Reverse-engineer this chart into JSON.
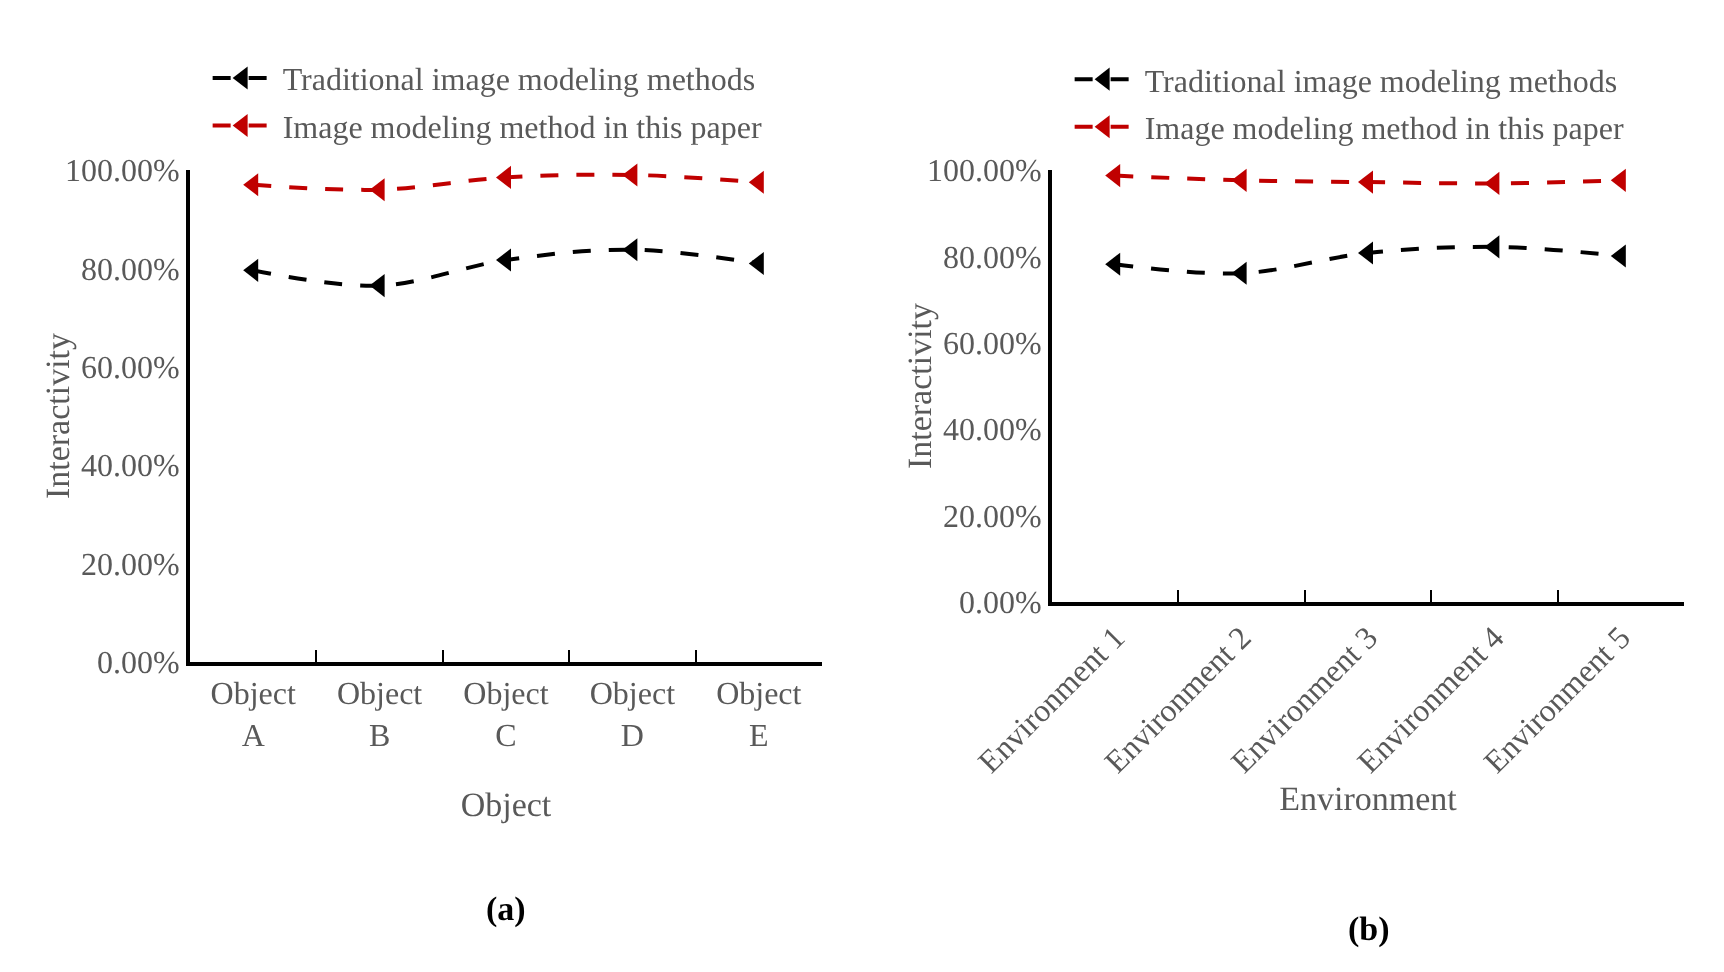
{
  "chart_data": [
    {
      "type": "line",
      "categories": [
        "Object A",
        "Object B",
        "Object C",
        "Object D",
        "Object E"
      ],
      "xlabel": "Object",
      "ylabel": "Interactivity",
      "ylim": [
        0,
        100
      ],
      "yticks": [
        {
          "value": 0,
          "label": "0.00%"
        },
        {
          "value": 20,
          "label": "20.00%"
        },
        {
          "value": 40,
          "label": "40.00%"
        },
        {
          "value": 60,
          "label": "60.00%"
        },
        {
          "value": 80,
          "label": "80.00%"
        },
        {
          "value": 100,
          "label": "100.00%"
        }
      ],
      "series": [
        {
          "name": "Traditional image modeling methods",
          "color": "#000000",
          "values": [
            79.6,
            76.5,
            81.7,
            83.8,
            81
          ]
        },
        {
          "name": "Image modeling method in this paper",
          "color": "#c00000",
          "values": [
            97,
            96,
            98.5,
            99,
            97.5
          ]
        }
      ],
      "marker": "triangle",
      "line_style": "dashed",
      "grid": false,
      "legend": "top",
      "annotations": [
        "(a)"
      ]
    },
    {
      "type": "line",
      "categories": [
        "Environment 1",
        "Environment 2",
        "Environment 3",
        "Environment 4",
        "Environment 5"
      ],
      "xlabel": "Environment",
      "ylabel": "Interactivity",
      "ylim": [
        0,
        100
      ],
      "yticks": [
        {
          "value": 0,
          "label": "0.00%"
        },
        {
          "value": 20,
          "label": "20.00%"
        },
        {
          "value": 40,
          "label": "40.00%"
        },
        {
          "value": 60,
          "label": "60.00%"
        },
        {
          "value": 80,
          "label": "80.00%"
        },
        {
          "value": 100,
          "label": "100.00%"
        }
      ],
      "series": [
        {
          "name": "Traditional image modeling methods",
          "color": "#000000",
          "values": [
            78.2,
            76.1,
            80.8,
            82.2,
            80.1
          ]
        },
        {
          "name": "Image modeling method in this paper",
          "color": "#c00000",
          "values": [
            98.7,
            97.6,
            97.2,
            96.9,
            97.6
          ]
        }
      ],
      "marker": "triangle",
      "line_style": "dashed",
      "grid": false,
      "legend": "top",
      "annotations": [
        "(b)"
      ]
    }
  ]
}
